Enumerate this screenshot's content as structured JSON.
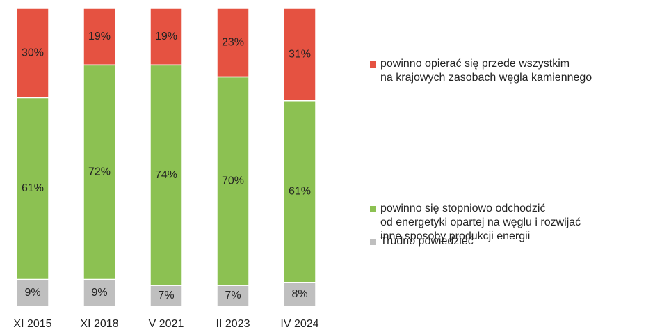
{
  "chart_data": {
    "type": "stacked_bar",
    "categories": [
      "XI 2015",
      "XI 2018",
      "V 2021",
      "II 2023",
      "IV 2024"
    ],
    "ylim": [
      0,
      100
    ],
    "series": [
      {
        "name": "powinno opierać się przede wszystkim\nna krajowych zasobach węgla kamiennego",
        "color": "#e55241",
        "values": [
          30,
          19,
          19,
          23,
          31
        ],
        "value_labels": [
          "30%",
          "19%",
          "19%",
          "23%",
          "31%"
        ]
      },
      {
        "name": "powinno się stopniowo odchodzić\nod energetyki opartej na węglu i rozwijać\ninne sposoby produkcji energii",
        "color": "#8cc152",
        "values": [
          61,
          72,
          74,
          70,
          61
        ],
        "value_labels": [
          "61%",
          "72%",
          "74%",
          "70%",
          "61%"
        ]
      },
      {
        "name": "Trudno powiedzieć",
        "color": "#bfbfbf",
        "values": [
          9,
          9,
          7,
          7,
          8
        ],
        "value_labels": [
          "9%",
          "9%",
          "7%",
          "7%",
          "8%"
        ]
      }
    ],
    "legend": "right"
  }
}
